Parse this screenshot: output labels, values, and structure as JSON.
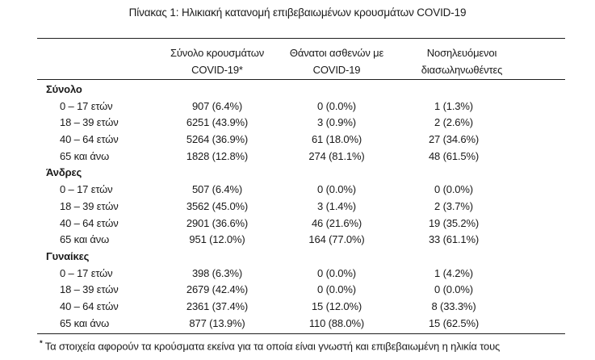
{
  "title": "Πίνακας 1: Ηλικιακή κατανομή επιβεβαιωμένων κρουσμάτων COVID-19",
  "table": {
    "columns": [
      {
        "line1": "Σύνολο κρουσμάτων",
        "line2": "COVID-19*"
      },
      {
        "line1": "Θάνατοι ασθενών με",
        "line2": "COVID-19"
      },
      {
        "line1": "Νοσηλευόμενοι",
        "line2": "διασωληνωθέντες"
      }
    ],
    "sections": [
      {
        "label": "Σύνολο",
        "rows": [
          {
            "age": "0 – 17 ετών",
            "cases": "907 (6.4%)",
            "deaths": "0 (0.0%)",
            "intubated": "1 (1.3%)"
          },
          {
            "age": "18 – 39 ετών",
            "cases": "6251 (43.9%)",
            "deaths": "3 (0.9%)",
            "intubated": "2 (2.6%)"
          },
          {
            "age": "40 – 64 ετών",
            "cases": "5264 (36.9%)",
            "deaths": "61 (18.0%)",
            "intubated": "27 (34.6%)"
          },
          {
            "age": "65 και άνω",
            "cases": "1828 (12.8%)",
            "deaths": "274 (81.1%)",
            "intubated": "48 (61.5%)"
          }
        ]
      },
      {
        "label": "Άνδρες",
        "rows": [
          {
            "age": "0 – 17 ετών",
            "cases": "507 (6.4%)",
            "deaths": "0 (0.0%)",
            "intubated": "0 (0.0%)"
          },
          {
            "age": "18 – 39 ετών",
            "cases": "3562 (45.0%)",
            "deaths": "3 (1.4%)",
            "intubated": "2 (3.7%)"
          },
          {
            "age": "40 – 64 ετών",
            "cases": "2901 (36.6%)",
            "deaths": "46 (21.6%)",
            "intubated": "19 (35.2%)"
          },
          {
            "age": "65 και άνω",
            "cases": "951 (12.0%)",
            "deaths": "164 (77.0%)",
            "intubated": "33 (61.1%)"
          }
        ]
      },
      {
        "label": "Γυναίκες",
        "rows": [
          {
            "age": "0 – 17 ετών",
            "cases": "398 (6.3%)",
            "deaths": "0 (0.0%)",
            "intubated": "1 (4.2%)"
          },
          {
            "age": "18 – 39 ετών",
            "cases": "2679 (42.4%)",
            "deaths": "0 (0.0%)",
            "intubated": "0 (0.0%)"
          },
          {
            "age": "40 – 64 ετών",
            "cases": "2361 (37.4%)",
            "deaths": "15 (12.0%)",
            "intubated": "8 (33.3%)"
          },
          {
            "age": "65 και άνω",
            "cases": "877 (13.9%)",
            "deaths": "110 (88.0%)",
            "intubated": "15 (62.5%)"
          }
        ]
      }
    ]
  },
  "footnote": {
    "marker": "*",
    "text": "Τα στοιχεία αφορούν τα κρούσματα εκείνα για τα οποία είναι γνωστή και επιβεβαιωμένη η ηλικία τους"
  },
  "colors": {
    "text": "#1a1a1a",
    "rule": "#1f1f1f",
    "background": "#ffffff"
  }
}
